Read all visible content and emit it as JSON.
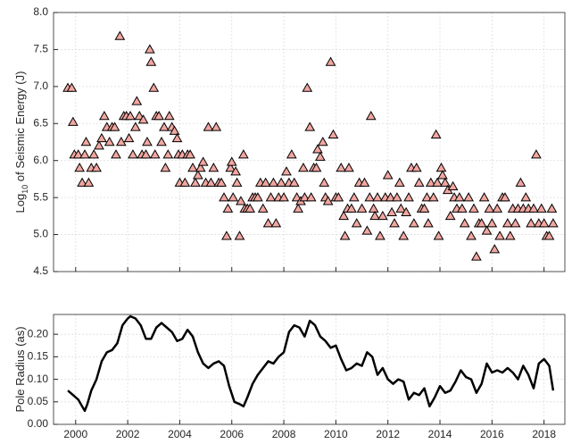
{
  "chart_data": [
    {
      "type": "scatter",
      "ylabel": [
        "Log",
        "10",
        " of Seismic Energy (J)"
      ],
      "marker": "triangle",
      "color": "#f2a6a0",
      "edgecolor": "#000000",
      "grid": true,
      "show_xtick_labels": false,
      "xlim": [
        1999.15,
        2018.8
      ],
      "xticks": [
        2000,
        2002,
        2004,
        2006,
        2008,
        2010,
        2012,
        2014,
        2016,
        2018
      ],
      "ylim": [
        4.5,
        8.0
      ],
      "yticks": [
        {
          "value": 4.5,
          "label": "4.5"
        },
        {
          "value": 5.0,
          "label": "5.0"
        },
        {
          "value": 5.5,
          "label": "5.5"
        },
        {
          "value": 6.0,
          "label": "6.0"
        },
        {
          "value": 6.5,
          "label": "6.5"
        },
        {
          "value": 7.0,
          "label": "7.0"
        },
        {
          "value": 7.5,
          "label": "7.5"
        },
        {
          "value": 8.0,
          "label": "8.0"
        }
      ],
      "x": [
        1999.7,
        1999.85,
        1999.9,
        1999.95,
        2000.1,
        2000.15,
        2000.25,
        2000.35,
        2000.4,
        2000.5,
        2000.6,
        2000.7,
        2000.8,
        2000.9,
        2001.0,
        2001.1,
        2001.2,
        2001.3,
        2001.4,
        2001.5,
        2001.55,
        2001.7,
        2001.75,
        2001.85,
        2001.95,
        2002.05,
        2002.1,
        2002.2,
        2002.3,
        2002.35,
        2002.45,
        2002.55,
        2002.6,
        2002.7,
        2002.75,
        2002.85,
        2002.9,
        2003.0,
        2003.05,
        2003.1,
        2003.2,
        2003.3,
        2003.4,
        2003.45,
        2003.55,
        2003.6,
        2003.7,
        2003.8,
        2003.9,
        2003.95,
        2004.0,
        2004.1,
        2004.2,
        2004.3,
        2004.4,
        2004.5,
        2004.6,
        2004.7,
        2004.8,
        2004.9,
        2005.0,
        2005.1,
        2005.2,
        2005.3,
        2005.4,
        2005.5,
        2005.6,
        2005.7,
        2005.8,
        2005.85,
        2005.95,
        2006.0,
        2006.05,
        2006.15,
        2006.2,
        2006.3,
        2006.35,
        2006.45,
        2006.5,
        2006.6,
        2006.7,
        2006.8,
        2006.9,
        2007.0,
        2007.1,
        2007.2,
        2007.3,
        2007.4,
        2007.5,
        2007.6,
        2007.7,
        2007.8,
        2007.9,
        2008.0,
        2008.1,
        2008.2,
        2008.3,
        2008.4,
        2008.5,
        2008.55,
        2008.65,
        2008.75,
        2008.8,
        2008.9,
        2009.0,
        2009.05,
        2009.15,
        2009.25,
        2009.3,
        2009.4,
        2009.5,
        2009.55,
        2009.6,
        2009.7,
        2009.8,
        2009.9,
        2010.0,
        2010.1,
        2010.2,
        2010.3,
        2010.35,
        2010.45,
        2010.5,
        2010.6,
        2010.7,
        2010.8,
        2010.9,
        2011.0,
        2011.1,
        2011.2,
        2011.3,
        2011.35,
        2011.45,
        2011.5,
        2011.6,
        2011.7,
        2011.8,
        2011.9,
        2012.0,
        2012.1,
        2012.15,
        2012.25,
        2012.35,
        2012.45,
        2012.5,
        2012.6,
        2012.7,
        2012.8,
        2012.9,
        2013.0,
        2013.1,
        2013.2,
        2013.3,
        2013.4,
        2013.5,
        2013.55,
        2013.65,
        2013.75,
        2013.85,
        2013.9,
        2013.95,
        2014.05,
        2014.1,
        2014.2,
        2014.3,
        2014.4,
        2014.5,
        2014.55,
        2014.65,
        2014.75,
        2014.85,
        2014.95,
        2015.1,
        2015.2,
        2015.3,
        2015.4,
        2015.5,
        2015.6,
        2015.7,
        2015.8,
        2015.9,
        2016.0,
        2016.1,
        2016.2,
        2016.3,
        2016.4,
        2016.5,
        2016.6,
        2016.7,
        2016.8,
        2016.9,
        2017.0,
        2017.1,
        2017.2,
        2017.3,
        2017.4,
        2017.5,
        2017.6,
        2017.7,
        2017.8,
        2017.9,
        2018.0,
        2018.1,
        2018.2,
        2018.3,
        2018.35
      ],
      "values": [
        6.98,
        6.98,
        6.52,
        6.08,
        6.08,
        5.9,
        5.7,
        6.08,
        6.25,
        5.7,
        5.9,
        6.08,
        5.9,
        6.2,
        6.3,
        6.6,
        6.45,
        6.25,
        6.45,
        6.45,
        6.08,
        7.68,
        6.25,
        6.6,
        6.6,
        6.3,
        6.6,
        6.08,
        6.45,
        6.8,
        6.6,
        6.08,
        6.55,
        6.08,
        6.25,
        7.5,
        7.33,
        6.98,
        6.08,
        6.6,
        6.6,
        6.25,
        6.45,
        5.9,
        6.08,
        6.6,
        6.45,
        6.4,
        6.3,
        6.08,
        5.7,
        6.08,
        5.7,
        6.08,
        6.08,
        5.9,
        5.7,
        5.8,
        5.9,
        5.98,
        5.7,
        6.45,
        5.7,
        5.9,
        6.45,
        5.7,
        5.7,
        5.5,
        4.98,
        5.35,
        5.9,
        5.98,
        5.5,
        5.85,
        5.7,
        4.98,
        5.45,
        6.08,
        5.35,
        5.35,
        5.35,
        5.5,
        5.5,
        5.5,
        5.7,
        5.35,
        5.7,
        5.15,
        5.5,
        5.7,
        5.15,
        5.5,
        5.7,
        5.5,
        5.85,
        5.7,
        6.08,
        5.7,
        5.5,
        5.35,
        5.45,
        5.9,
        5.5,
        6.98,
        6.45,
        5.5,
        5.9,
        5.9,
        6.15,
        6.05,
        6.25,
        5.7,
        5.5,
        5.45,
        7.33,
        6.35,
        5.5,
        5.5,
        5.9,
        5.25,
        4.98,
        5.35,
        5.9,
        5.35,
        5.5,
        5.15,
        5.7,
        5.35,
        5.7,
        5.05,
        5.5,
        6.6,
        5.35,
        5.25,
        5.5,
        4.98,
        5.25,
        5.5,
        5.8,
        5.5,
        5.3,
        5.15,
        5.5,
        5.7,
        5.35,
        4.98,
        5.3,
        5.5,
        5.9,
        5.15,
        5.9,
        5.7,
        5.35,
        5.35,
        5.5,
        5.15,
        5.7,
        5.5,
        6.35,
        5.7,
        4.98,
        5.9,
        5.8,
        5.7,
        5.6,
        5.25,
        5.65,
        5.5,
        5.35,
        5.5,
        5.35,
        5.15,
        5.5,
        4.98,
        5.35,
        4.7,
        5.15,
        5.15,
        5.5,
        5.05,
        5.35,
        5.15,
        4.8,
        5.35,
        4.98,
        5.5,
        5.5,
        5.15,
        4.98,
        5.35,
        5.15,
        5.35,
        5.7,
        5.35,
        5.5,
        5.35,
        5.15,
        5.35,
        6.08,
        5.15,
        5.35,
        5.15,
        4.98,
        4.98,
        5.35,
        5.15
      ]
    },
    {
      "type": "line",
      "ylabel": [
        "Pole Radius (as)"
      ],
      "color": "#000000",
      "grid": true,
      "show_xtick_labels": true,
      "xlim": [
        1999.15,
        2018.8
      ],
      "xticks": [
        2000,
        2002,
        2004,
        2006,
        2008,
        2010,
        2012,
        2014,
        2016,
        2018
      ],
      "ylim": [
        0,
        0.244
      ],
      "yticks": [
        {
          "value": 0,
          "label": "0.00"
        },
        {
          "value": 0.05,
          "label": "0.05"
        },
        {
          "value": 0.1,
          "label": "0.10"
        },
        {
          "value": 0.15,
          "label": "0.15"
        },
        {
          "value": 0.2,
          "label": "0.20"
        }
      ],
      "x": [
        1999.7,
        1999.9,
        2000.1,
        2000.25,
        2000.35,
        2000.45,
        2000.6,
        2000.8,
        2001.0,
        2001.2,
        2001.4,
        2001.6,
        2001.8,
        2002.0,
        2002.1,
        2002.3,
        2002.5,
        2002.7,
        2002.9,
        2003.1,
        2003.3,
        2003.5,
        2003.7,
        2003.9,
        2004.1,
        2004.3,
        2004.5,
        2004.7,
        2004.9,
        2005.1,
        2005.3,
        2005.5,
        2005.7,
        2005.9,
        2006.1,
        2006.3,
        2006.45,
        2006.6,
        2006.8,
        2007.0,
        2007.2,
        2007.4,
        2007.6,
        2007.8,
        2008.0,
        2008.2,
        2008.4,
        2008.6,
        2008.8,
        2009.0,
        2009.2,
        2009.4,
        2009.6,
        2009.8,
        2010.0,
        2010.2,
        2010.4,
        2010.6,
        2010.8,
        2011.0,
        2011.2,
        2011.4,
        2011.6,
        2011.8,
        2012.0,
        2012.2,
        2012.4,
        2012.6,
        2012.8,
        2013.0,
        2013.2,
        2013.4,
        2013.6,
        2013.8,
        2014.0,
        2014.2,
        2014.4,
        2014.6,
        2014.8,
        2015.0,
        2015.2,
        2015.4,
        2015.6,
        2015.8,
        2016.0,
        2016.2,
        2016.4,
        2016.6,
        2016.8,
        2017.0,
        2017.2,
        2017.4,
        2017.6,
        2017.8,
        2018.0,
        2018.2,
        2018.35
      ],
      "values": [
        0.075,
        0.065,
        0.055,
        0.04,
        0.03,
        0.045,
        0.075,
        0.1,
        0.14,
        0.16,
        0.165,
        0.18,
        0.22,
        0.235,
        0.24,
        0.235,
        0.22,
        0.19,
        0.19,
        0.215,
        0.225,
        0.215,
        0.205,
        0.185,
        0.19,
        0.21,
        0.195,
        0.16,
        0.135,
        0.125,
        0.135,
        0.14,
        0.13,
        0.085,
        0.05,
        0.045,
        0.04,
        0.06,
        0.09,
        0.11,
        0.125,
        0.14,
        0.135,
        0.15,
        0.16,
        0.205,
        0.22,
        0.215,
        0.195,
        0.23,
        0.22,
        0.195,
        0.185,
        0.17,
        0.175,
        0.145,
        0.12,
        0.125,
        0.135,
        0.13,
        0.16,
        0.15,
        0.11,
        0.125,
        0.1,
        0.09,
        0.1,
        0.095,
        0.055,
        0.07,
        0.065,
        0.08,
        0.04,
        0.06,
        0.085,
        0.07,
        0.075,
        0.095,
        0.12,
        0.105,
        0.1,
        0.07,
        0.09,
        0.135,
        0.115,
        0.12,
        0.115,
        0.125,
        0.115,
        0.1,
        0.13,
        0.11,
        0.08,
        0.135,
        0.145,
        0.13,
        0.075
      ]
    }
  ]
}
